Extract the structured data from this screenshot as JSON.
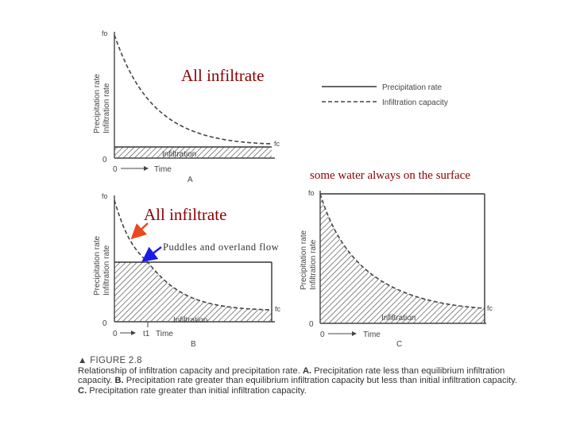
{
  "panels": {
    "a": {
      "letter": "A",
      "y_axis_outer": "Precipitation rate",
      "y_axis_inner": "Infiltration rate",
      "f0_label": "fo",
      "fc_label": "fc",
      "origin_label": "0",
      "time_label": "Time",
      "band_label": "Infiltration"
    },
    "b": {
      "letter": "B",
      "y_axis_outer": "Precipitation rate",
      "y_axis_inner": "Infiltration rate",
      "f0_label": "fo",
      "fc_label": "fc",
      "origin_label": "0",
      "time_origin_label": "0",
      "t1_label": "t1",
      "time_label": "Time",
      "band_label": "Infiltration"
    },
    "c": {
      "letter": "C",
      "y_axis_outer": "Precipitation rate",
      "y_axis_inner": "Infiltration rate",
      "f0_label": "fo",
      "fc_label": "fc",
      "origin_label": "0",
      "time_label": "Time",
      "band_label": "Infiltration"
    }
  },
  "legend": {
    "precipitation": "Precipitation rate",
    "infiltration": "Infiltration capacity"
  },
  "annotations": {
    "a_all_infiltrate": "All infiltrate",
    "b_all_infiltrate": "All infiltrate",
    "puddles": "Puddles and overland flow",
    "surface_water": "some water always on the surface"
  },
  "caption": {
    "figure_label": "FIGURE 2.8",
    "intro": "Relationship of infiltration capacity and precipitation rate.",
    "a_letter": "A.",
    "a_text": "Precipitation rate less than equilibrium infiltration capacity.",
    "b_letter": "B.",
    "b_text": "Precipitation rate greater than equilibrium infiltration capacity but less than initial infiltration capacity.",
    "c_letter": "C.",
    "c_text": "Precipitation rate greater than initial infiltration capacity."
  },
  "colors": {
    "ink": "#333333",
    "annotation_text": "#8b0000",
    "arrow_red": "#e8481e",
    "arrow_blue": "#1a1ae6"
  }
}
